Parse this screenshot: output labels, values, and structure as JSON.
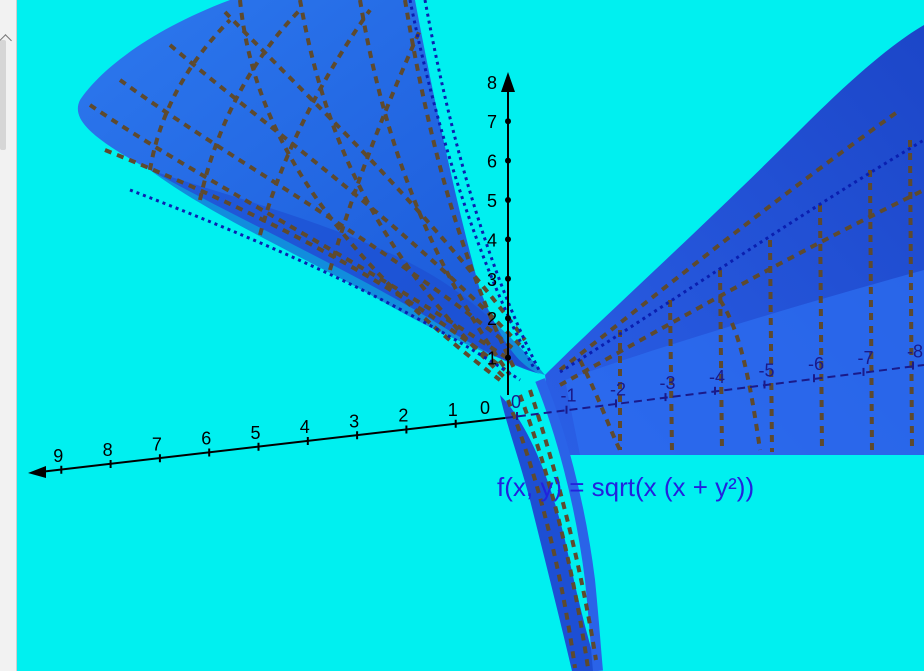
{
  "function_label": "f(x, y) = sqrt(x (x + y²))",
  "colors": {
    "background": "#00f0f0",
    "surface": "#1f5fe8",
    "surface_dark": "#1b45c8",
    "grid_lines": "#6b4a2a",
    "axis": "#000000"
  },
  "axes": {
    "x_ticks": [
      "1",
      "2",
      "3",
      "4",
      "5",
      "6",
      "7",
      "8",
      "9"
    ],
    "y_ticks": [
      "0",
      "-1",
      "-2",
      "-3",
      "-4",
      "-5",
      "-6",
      "-7",
      "-8"
    ],
    "z_ticks": [
      "1",
      "2",
      "3",
      "4",
      "5",
      "6",
      "7",
      "8"
    ],
    "origin": "0"
  }
}
